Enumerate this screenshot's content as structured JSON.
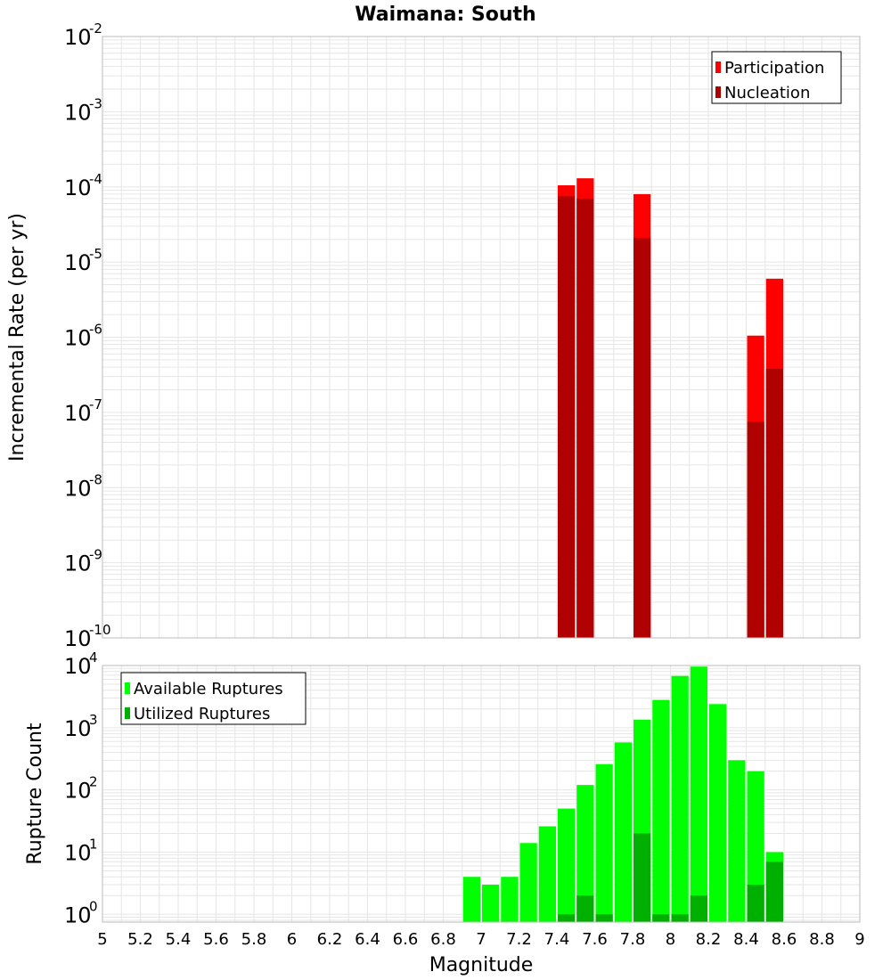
{
  "title": "Waimana: South",
  "xlabel": "Magnitude",
  "colors": {
    "participation": "#ff0000",
    "nucleation": "#b00000",
    "available": "#00ff00",
    "utilized": "#00b000",
    "grid": "#e6e6e6",
    "frame": "#bbbbbb"
  },
  "chart_data": [
    {
      "type": "bar",
      "ylabel": "Incremental Rate (per yr)",
      "yscale": "log",
      "ylim": [
        1e-10,
        0.01
      ],
      "xlim": [
        5,
        9
      ],
      "legend_position": "top-right",
      "ytick_exponents": [
        "-2",
        "-3",
        "-4",
        "-5",
        "-6",
        "-7",
        "-8",
        "-9",
        "-10"
      ],
      "series": [
        {
          "name": "Participation",
          "x": [
            7.45,
            7.55,
            7.85,
            8.45,
            8.55
          ],
          "values": [
            0.000105,
            0.00013,
            8e-05,
            1.05e-06,
            6e-06
          ]
        },
        {
          "name": "Nucleation",
          "x": [
            7.45,
            7.55,
            7.85,
            8.45,
            8.55
          ],
          "values": [
            7.5e-05,
            7e-05,
            2.1e-05,
            7.5e-08,
            3.8e-07
          ]
        }
      ]
    },
    {
      "type": "bar",
      "ylabel": "Rupture Count",
      "yscale": "log",
      "ylim": [
        0.75,
        10000
      ],
      "xlim": [
        5,
        9
      ],
      "legend_position": "top-left",
      "ytick_exponents": [
        "4",
        "3",
        "2",
        "1",
        "0"
      ],
      "series": [
        {
          "name": "Available Ruptures",
          "x": [
            6.95,
            7.05,
            7.15,
            7.25,
            7.35,
            7.45,
            7.55,
            7.65,
            7.75,
            7.85,
            7.95,
            8.05,
            8.15,
            8.25,
            8.35,
            8.45,
            8.55
          ],
          "values": [
            4,
            3,
            4,
            14,
            26,
            50,
            120,
            260,
            580,
            1350,
            2800,
            6800,
            9600,
            2400,
            300,
            200,
            10
          ]
        },
        {
          "name": "Utilized Ruptures",
          "x": [
            7.45,
            7.55,
            7.65,
            7.85,
            7.95,
            8.05,
            8.15,
            8.45,
            8.55
          ],
          "values": [
            1,
            2,
            1,
            20,
            1,
            1,
            2,
            3,
            7
          ]
        }
      ]
    }
  ],
  "xticks": [
    "5",
    "5.2",
    "5.4",
    "5.6",
    "5.8",
    "6",
    "6.2",
    "6.4",
    "6.6",
    "6.8",
    "7",
    "7.2",
    "7.4",
    "7.6",
    "7.8",
    "8",
    "8.2",
    "8.4",
    "8.6",
    "8.8",
    "9"
  ]
}
